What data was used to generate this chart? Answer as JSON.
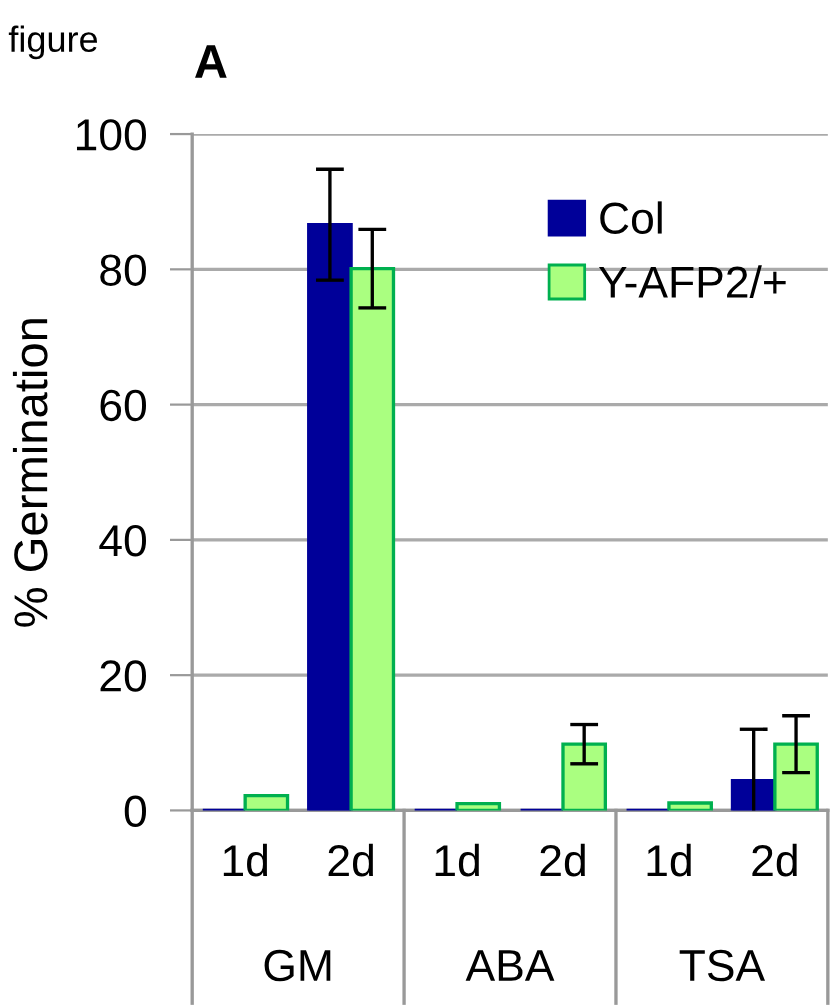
{
  "chart_data": {
    "type": "bar",
    "title": "A",
    "ylabel": "% Germination",
    "annotations": [
      "figure",
      "GM",
      "ABA",
      "TSA"
    ],
    "categories": [
      "1d",
      "2d",
      "1d",
      "2d",
      "1d",
      "2d"
    ],
    "series": [
      {
        "name": "Col",
        "color": "#000099",
        "values": [
          0,
          86.6,
          0,
          0,
          0,
          4.4
        ],
        "errors": [
          null,
          8.2,
          null,
          null,
          null,
          7.6
        ]
      },
      {
        "name": "Y-AFP2/+",
        "color": "#aaff80",
        "values": [
          2.2,
          80.1,
          1.0,
          9.8,
          1.1,
          9.8
        ],
        "errors": [
          null,
          5.8,
          null,
          2.9,
          null,
          4.2
        ]
      }
    ],
    "ylim": [
      0,
      100
    ],
    "yticks": [
      0,
      20,
      40,
      60,
      80,
      100
    ],
    "grid": "y",
    "legend": "top right"
  }
}
